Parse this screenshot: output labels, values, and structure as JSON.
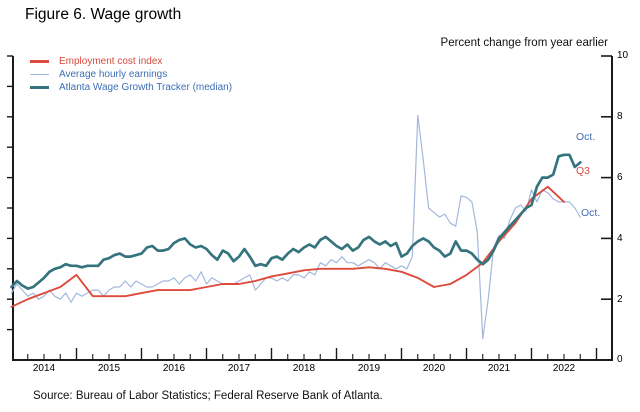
{
  "figure": {
    "title": "Figure 6. Wage growth",
    "units_label": "Percent change from year earlier",
    "source": "Source: Bureau of Labor Statistics; Federal Reserve Bank of Atlanta."
  },
  "legend": {
    "items": [
      {
        "label": "Employment cost index",
        "text_color": "#d84a3c"
      },
      {
        "label": "Average hourly earnings",
        "text_color": "#3d6eb4"
      },
      {
        "label": "Atlanta Wage Growth Tracker (median)",
        "text_color": "#3d6eb4"
      }
    ]
  },
  "annotations": [
    {
      "text": "Oct.",
      "series": "Atlanta Wage Growth Tracker (median)",
      "color": "#3d6eb4"
    },
    {
      "text": "Q3",
      "series": "Employment cost index",
      "color": "#d84a3c"
    },
    {
      "text": "Oct.",
      "series": "Average hourly earnings",
      "color": "#3d6eb4"
    }
  ],
  "chart_data": {
    "type": "line",
    "title": "Figure 6. Wage growth",
    "xlabel": "",
    "ylabel": "Percent change from year earlier",
    "ylim": [
      0,
      10
    ],
    "grid": false,
    "legend_position": "top-left",
    "y_axis": {
      "side": "right",
      "tick_values": [
        10,
        8,
        6,
        4,
        2,
        0
      ],
      "tick_labels": [
        "10",
        "8",
        "6",
        "4",
        "2",
        "0"
      ]
    },
    "x_axis": {
      "range_years": [
        2014,
        2023
      ],
      "tick_labels": [
        "2014",
        "2015",
        "2016",
        "2017",
        "2018",
        "2019",
        "2020",
        "2021",
        "2022"
      ],
      "minor_ticks": "quarterly"
    },
    "series": [
      {
        "id": "eci",
        "name": "Employment cost index",
        "color": "#dc4b3c",
        "frequency": "quarterly",
        "start": "2014 Q1",
        "end": "2022 Q3",
        "end_label": "Q3",
        "values": [
          1.75,
          2.0,
          2.2,
          2.4,
          2.8,
          2.1,
          2.1,
          2.1,
          2.2,
          2.3,
          2.3,
          2.3,
          2.4,
          2.5,
          2.5,
          2.6,
          2.75,
          2.85,
          2.95,
          3.0,
          3.0,
          3.0,
          3.05,
          3.0,
          2.9,
          2.7,
          2.4,
          2.5,
          2.8,
          3.2,
          3.9,
          4.5,
          5.3,
          5.7,
          5.2
        ]
      },
      {
        "id": "ahe",
        "name": "Average hourly earnings",
        "color": "#a3b8dc",
        "frequency": "monthly",
        "start": "2014-01",
        "end": "2022-10",
        "end_label": "Oct.",
        "values": [
          2.2,
          2.5,
          2.3,
          2.1,
          2.2,
          2.0,
          2.1,
          2.3,
          2.1,
          2.0,
          2.2,
          1.9,
          2.2,
          2.1,
          2.2,
          2.3,
          2.3,
          2.1,
          2.3,
          2.4,
          2.4,
          2.6,
          2.4,
          2.6,
          2.5,
          2.4,
          2.4,
          2.5,
          2.6,
          2.6,
          2.7,
          2.5,
          2.7,
          2.8,
          2.6,
          2.9,
          2.5,
          2.7,
          2.6,
          2.5,
          2.5,
          2.5,
          2.6,
          2.7,
          2.8,
          2.3,
          2.5,
          2.7,
          2.7,
          2.6,
          2.7,
          2.6,
          2.8,
          2.8,
          2.7,
          2.9,
          2.8,
          3.2,
          3.1,
          3.3,
          3.2,
          3.4,
          3.2,
          3.2,
          3.1,
          3.2,
          3.3,
          3.2,
          3.0,
          3.2,
          3.1,
          3.0,
          3.1,
          3.0,
          3.4,
          8.05,
          6.6,
          5.0,
          4.85,
          4.7,
          4.8,
          4.5,
          4.4,
          5.4,
          5.35,
          5.2,
          4.2,
          0.7,
          2.0,
          3.7,
          4.1,
          4.0,
          4.6,
          5.0,
          5.1,
          4.9,
          5.6,
          5.2,
          5.6,
          5.5,
          5.3,
          5.2,
          5.2,
          5.2,
          5.0,
          4.7
        ]
      },
      {
        "id": "awt",
        "name": "Atlanta Wage Growth Tracker (median)",
        "color": "#35747e",
        "frequency": "monthly",
        "start": "2014-01",
        "end": "2022-10",
        "end_label": "Oct.",
        "values": [
          2.4,
          2.6,
          2.45,
          2.35,
          2.4,
          2.55,
          2.7,
          2.9,
          3.0,
          3.05,
          3.15,
          3.1,
          3.1,
          3.05,
          3.1,
          3.1,
          3.1,
          3.3,
          3.35,
          3.45,
          3.5,
          3.4,
          3.4,
          3.45,
          3.5,
          3.7,
          3.75,
          3.6,
          3.6,
          3.65,
          3.85,
          3.95,
          4.0,
          3.8,
          3.7,
          3.75,
          3.65,
          3.45,
          3.3,
          3.6,
          3.5,
          3.25,
          3.4,
          3.65,
          3.4,
          3.1,
          3.15,
          3.1,
          3.35,
          3.4,
          3.3,
          3.5,
          3.65,
          3.55,
          3.7,
          3.8,
          3.7,
          3.95,
          4.05,
          3.9,
          3.75,
          3.65,
          3.8,
          3.6,
          3.7,
          3.95,
          4.05,
          3.9,
          3.8,
          3.9,
          3.75,
          3.85,
          3.4,
          3.5,
          3.75,
          3.9,
          4.0,
          3.9,
          3.7,
          3.6,
          3.4,
          3.5,
          3.9,
          3.6,
          3.6,
          3.5,
          3.3,
          3.15,
          3.3,
          3.6,
          4.0,
          4.2,
          4.4,
          4.6,
          4.8,
          5.0,
          5.1,
          5.7,
          6.0,
          6.0,
          6.1,
          6.7,
          6.75,
          6.75,
          6.35,
          6.5
        ]
      }
    ]
  }
}
